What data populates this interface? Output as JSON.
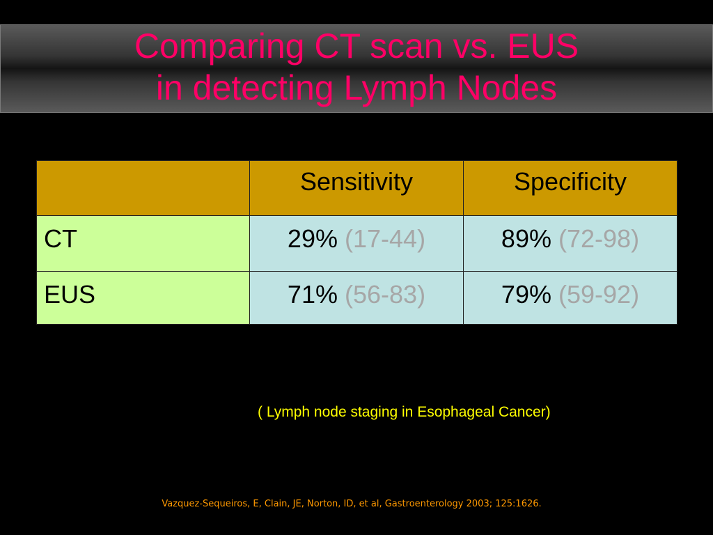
{
  "slide": {
    "title_line1": "Comparing CT scan vs. EUS",
    "title_line2": "in detecting Lymph Nodes",
    "caption": "( Lymph node staging in Esophageal Cancer)",
    "citation": "Vazquez-Sequeiros, E, Clain, JE, Norton, ID, et al, Gastroenterology 2003; 125:1626.",
    "colors": {
      "title": "#ff0066",
      "header_fill": "#cc9900",
      "row_label_fill": "#ccff99",
      "value_fill": "#bfe3e3",
      "ci_text": "#a6a6a6",
      "caption": "#ffff00",
      "citation": "#ff9900"
    }
  },
  "table": {
    "headers": [
      "",
      "Sensitivity",
      "Specificity"
    ],
    "rows": [
      {
        "label": "CT",
        "sensitivity": {
          "value": "29%",
          "ci": "(17-44)"
        },
        "specificity": {
          "value": "89%",
          "ci": "(72-98)"
        }
      },
      {
        "label": "EUS",
        "sensitivity": {
          "value": "71%",
          "ci": "(56-83)"
        },
        "specificity": {
          "value": "79%",
          "ci": "(59-92)"
        }
      }
    ]
  }
}
